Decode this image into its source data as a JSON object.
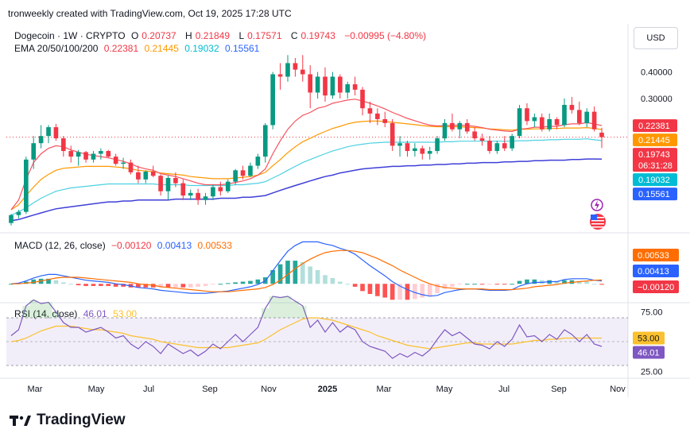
{
  "header": {
    "text": "tronweekly created with TradingView.com, Oct 19, 2025 17:28 UTC"
  },
  "legend": {
    "symbol": "Dogecoin · 1W · CRYPTO",
    "o_label": "O",
    "o": "0.20737",
    "h_label": "H",
    "h": "0.21849",
    "l_label": "L",
    "l": "0.17571",
    "c_label": "C",
    "c": "0.19743",
    "change": "−0.00995 (−4.80%)",
    "ema_label": "EMA 20/50/100/200",
    "ema20": "0.22381",
    "ema50": "0.21445",
    "ema100": "0.19032",
    "ema200": "0.15561"
  },
  "currency_button": "USD",
  "price_axis": {
    "ticks": [
      {
        "v": 0.4,
        "label": "0.40000"
      },
      {
        "v": 0.3,
        "label": "0.30000"
      }
    ],
    "badges": [
      {
        "v": 0.22381,
        "label": "0.22381",
        "color": "#f23645"
      },
      {
        "v": 0.21445,
        "label": "0.21445",
        "color": "#ff9800"
      },
      {
        "v": 0.19743,
        "label": "0.19743",
        "color": "#f23645",
        "sub": "06:31:28"
      },
      {
        "v": 0.19032,
        "label": "0.19032",
        "color": "#00bcd4"
      },
      {
        "v": 0.15561,
        "label": "0.15561",
        "color": "#2962ff"
      }
    ]
  },
  "macd": {
    "label": "MACD (12, 26, close)",
    "v1": "−0.00120",
    "v2": "0.00413",
    "v3": "0.00533",
    "badges": [
      {
        "label": "0.00533",
        "color": "#ff6d00"
      },
      {
        "label": "0.00413",
        "color": "#2962ff"
      },
      {
        "label": "−0.00120",
        "color": "#f23645"
      }
    ]
  },
  "rsi": {
    "label": "RSI (14, close)",
    "v1": "46.01",
    "v2": "53.00",
    "ticks": [
      {
        "v": 75,
        "label": "75.00"
      },
      {
        "v": 25,
        "label": "25.00"
      }
    ],
    "badges": [
      {
        "v": 53,
        "label": "53.00",
        "color": "#fbc02d",
        "text": "#131722"
      },
      {
        "v": 46.01,
        "label": "46.01",
        "color": "#7e57c2",
        "text": "#ffffff"
      }
    ]
  },
  "time_axis": [
    "Mar",
    "May",
    "Jul",
    "Sep",
    "Nov",
    "2025",
    "Mar",
    "May",
    "Jul",
    "Sep",
    "Nov"
  ],
  "brand": "TradingView",
  "colors": {
    "up": "#089981",
    "down": "#f23645",
    "ema20": "#f7525f",
    "ema50": "#ff9800",
    "ema100": "#4dd0e1",
    "ema200": "#3f3fd8",
    "macd": "#2962ff",
    "signal": "#ff6d00",
    "rsi": "#7e57c2",
    "rsi_ma": "#fbc02d"
  },
  "chart_data": {
    "type": "candlestick",
    "title": "Dogecoin · 1W · CRYPTO",
    "x_start": "2024-02",
    "x_end": "2025-10",
    "ohlc": [
      [
        0.078,
        0.086,
        0.076,
        0.085
      ],
      [
        0.085,
        0.09,
        0.082,
        0.088
      ],
      [
        0.088,
        0.16,
        0.086,
        0.155
      ],
      [
        0.155,
        0.2,
        0.14,
        0.185
      ],
      [
        0.185,
        0.225,
        0.175,
        0.2
      ],
      [
        0.2,
        0.225,
        0.185,
        0.22
      ],
      [
        0.22,
        0.228,
        0.19,
        0.195
      ],
      [
        0.195,
        0.2,
        0.16,
        0.17
      ],
      [
        0.17,
        0.18,
        0.15,
        0.16
      ],
      [
        0.16,
        0.172,
        0.145,
        0.168
      ],
      [
        0.168,
        0.17,
        0.15,
        0.155
      ],
      [
        0.155,
        0.17,
        0.15,
        0.165
      ],
      [
        0.165,
        0.175,
        0.155,
        0.17
      ],
      [
        0.17,
        0.172,
        0.158,
        0.16
      ],
      [
        0.16,
        0.165,
        0.145,
        0.148
      ],
      [
        0.148,
        0.158,
        0.14,
        0.15
      ],
      [
        0.15,
        0.155,
        0.132,
        0.135
      ],
      [
        0.135,
        0.145,
        0.12,
        0.125
      ],
      [
        0.125,
        0.138,
        0.12,
        0.136
      ],
      [
        0.136,
        0.145,
        0.128,
        0.13
      ],
      [
        0.13,
        0.132,
        0.105,
        0.11
      ],
      [
        0.11,
        0.13,
        0.1,
        0.127
      ],
      [
        0.127,
        0.135,
        0.115,
        0.12
      ],
      [
        0.12,
        0.125,
        0.1,
        0.105
      ],
      [
        0.105,
        0.112,
        0.1,
        0.108
      ],
      [
        0.108,
        0.113,
        0.095,
        0.1
      ],
      [
        0.1,
        0.108,
        0.095,
        0.104
      ],
      [
        0.104,
        0.118,
        0.1,
        0.115
      ],
      [
        0.115,
        0.122,
        0.105,
        0.11
      ],
      [
        0.11,
        0.125,
        0.108,
        0.122
      ],
      [
        0.122,
        0.14,
        0.118,
        0.138
      ],
      [
        0.138,
        0.145,
        0.125,
        0.13
      ],
      [
        0.13,
        0.15,
        0.128,
        0.145
      ],
      [
        0.145,
        0.165,
        0.14,
        0.16
      ],
      [
        0.16,
        0.23,
        0.15,
        0.225
      ],
      [
        0.225,
        0.4,
        0.215,
        0.39
      ],
      [
        0.39,
        0.44,
        0.33,
        0.38
      ],
      [
        0.38,
        0.48,
        0.36,
        0.44
      ],
      [
        0.44,
        0.465,
        0.38,
        0.41
      ],
      [
        0.41,
        0.48,
        0.36,
        0.39
      ],
      [
        0.39,
        0.43,
        0.27,
        0.32
      ],
      [
        0.32,
        0.4,
        0.3,
        0.38
      ],
      [
        0.38,
        0.42,
        0.29,
        0.31
      ],
      [
        0.31,
        0.4,
        0.3,
        0.38
      ],
      [
        0.38,
        0.39,
        0.3,
        0.32
      ],
      [
        0.32,
        0.36,
        0.3,
        0.35
      ],
      [
        0.35,
        0.38,
        0.31,
        0.33
      ],
      [
        0.33,
        0.34,
        0.25,
        0.27
      ],
      [
        0.27,
        0.29,
        0.23,
        0.255
      ],
      [
        0.255,
        0.27,
        0.225,
        0.24
      ],
      [
        0.24,
        0.26,
        0.22,
        0.23
      ],
      [
        0.23,
        0.24,
        0.17,
        0.18
      ],
      [
        0.18,
        0.2,
        0.16,
        0.185
      ],
      [
        0.185,
        0.19,
        0.16,
        0.17
      ],
      [
        0.17,
        0.185,
        0.16,
        0.175
      ],
      [
        0.175,
        0.18,
        0.155,
        0.165
      ],
      [
        0.165,
        0.178,
        0.155,
        0.17
      ],
      [
        0.17,
        0.2,
        0.165,
        0.195
      ],
      [
        0.195,
        0.24,
        0.19,
        0.23
      ],
      [
        0.23,
        0.255,
        0.21,
        0.215
      ],
      [
        0.215,
        0.235,
        0.195,
        0.23
      ],
      [
        0.23,
        0.24,
        0.205,
        0.21
      ],
      [
        0.21,
        0.22,
        0.19,
        0.195
      ],
      [
        0.195,
        0.205,
        0.18,
        0.19
      ],
      [
        0.19,
        0.2,
        0.165,
        0.17
      ],
      [
        0.17,
        0.19,
        0.165,
        0.185
      ],
      [
        0.185,
        0.2,
        0.17,
        0.175
      ],
      [
        0.175,
        0.205,
        0.17,
        0.2
      ],
      [
        0.2,
        0.28,
        0.195,
        0.27
      ],
      [
        0.27,
        0.285,
        0.225,
        0.235
      ],
      [
        0.235,
        0.255,
        0.22,
        0.245
      ],
      [
        0.245,
        0.255,
        0.21,
        0.215
      ],
      [
        0.215,
        0.255,
        0.21,
        0.24
      ],
      [
        0.24,
        0.245,
        0.215,
        0.225
      ],
      [
        0.225,
        0.3,
        0.22,
        0.28
      ],
      [
        0.28,
        0.305,
        0.255,
        0.265
      ],
      [
        0.265,
        0.29,
        0.225,
        0.23
      ],
      [
        0.23,
        0.27,
        0.22,
        0.26
      ],
      [
        0.26,
        0.275,
        0.21,
        0.215
      ],
      [
        0.20737,
        0.21849,
        0.17571,
        0.19743
      ]
    ],
    "ema20": [
      0.09,
      0.1,
      0.125,
      0.15,
      0.165,
      0.175,
      0.18,
      0.178,
      0.172,
      0.168,
      0.164,
      0.162,
      0.16,
      0.158,
      0.155,
      0.152,
      0.148,
      0.143,
      0.14,
      0.138,
      0.133,
      0.131,
      0.129,
      0.126,
      0.123,
      0.12,
      0.118,
      0.118,
      0.118,
      0.119,
      0.121,
      0.123,
      0.126,
      0.131,
      0.14,
      0.165,
      0.19,
      0.215,
      0.235,
      0.25,
      0.258,
      0.27,
      0.275,
      0.285,
      0.29,
      0.295,
      0.298,
      0.292,
      0.285,
      0.277,
      0.268,
      0.258,
      0.25,
      0.242,
      0.236,
      0.23,
      0.225,
      0.223,
      0.224,
      0.224,
      0.225,
      0.224,
      0.222,
      0.219,
      0.215,
      0.213,
      0.211,
      0.21,
      0.215,
      0.217,
      0.22,
      0.22,
      0.222,
      0.222,
      0.226,
      0.228,
      0.228,
      0.231,
      0.228,
      0.22381
    ],
    "ema50": [
      0.09,
      0.095,
      0.105,
      0.115,
      0.125,
      0.132,
      0.138,
      0.141,
      0.142,
      0.143,
      0.144,
      0.144,
      0.144,
      0.144,
      0.143,
      0.142,
      0.14,
      0.138,
      0.137,
      0.136,
      0.134,
      0.133,
      0.132,
      0.131,
      0.129,
      0.128,
      0.127,
      0.126,
      0.126,
      0.126,
      0.127,
      0.128,
      0.129,
      0.131,
      0.135,
      0.145,
      0.155,
      0.167,
      0.178,
      0.188,
      0.195,
      0.203,
      0.21,
      0.217,
      0.222,
      0.228,
      0.232,
      0.234,
      0.235,
      0.235,
      0.234,
      0.232,
      0.23,
      0.228,
      0.226,
      0.224,
      0.222,
      0.221,
      0.221,
      0.221,
      0.221,
      0.22,
      0.219,
      0.218,
      0.216,
      0.215,
      0.214,
      0.213,
      0.215,
      0.215,
      0.216,
      0.216,
      0.217,
      0.217,
      0.218,
      0.218,
      0.218,
      0.219,
      0.217,
      0.21445
    ],
    "ema100": [
      0.085,
      0.088,
      0.092,
      0.097,
      0.102,
      0.106,
      0.11,
      0.112,
      0.114,
      0.115,
      0.116,
      0.117,
      0.118,
      0.119,
      0.119,
      0.119,
      0.119,
      0.119,
      0.119,
      0.119,
      0.118,
      0.118,
      0.118,
      0.118,
      0.117,
      0.117,
      0.117,
      0.117,
      0.117,
      0.117,
      0.118,
      0.118,
      0.119,
      0.12,
      0.122,
      0.127,
      0.132,
      0.138,
      0.144,
      0.15,
      0.155,
      0.16,
      0.165,
      0.17,
      0.174,
      0.178,
      0.181,
      0.183,
      0.185,
      0.186,
      0.187,
      0.187,
      0.187,
      0.187,
      0.187,
      0.187,
      0.187,
      0.187,
      0.188,
      0.188,
      0.189,
      0.189,
      0.189,
      0.189,
      0.189,
      0.189,
      0.189,
      0.189,
      0.19,
      0.19,
      0.191,
      0.191,
      0.192,
      0.192,
      0.193,
      0.193,
      0.193,
      0.194,
      0.192,
      0.19032
    ],
    "ema200": [
      0.08,
      0.081,
      0.083,
      0.085,
      0.087,
      0.089,
      0.091,
      0.092,
      0.093,
      0.094,
      0.095,
      0.096,
      0.097,
      0.098,
      0.098,
      0.099,
      0.099,
      0.1,
      0.1,
      0.1,
      0.1,
      0.1,
      0.101,
      0.101,
      0.101,
      0.101,
      0.101,
      0.101,
      0.102,
      0.102,
      0.102,
      0.103,
      0.103,
      0.104,
      0.105,
      0.108,
      0.111,
      0.114,
      0.117,
      0.12,
      0.123,
      0.126,
      0.129,
      0.131,
      0.134,
      0.136,
      0.138,
      0.14,
      0.141,
      0.142,
      0.143,
      0.144,
      0.144,
      0.145,
      0.145,
      0.146,
      0.146,
      0.147,
      0.147,
      0.148,
      0.148,
      0.149,
      0.149,
      0.15,
      0.15,
      0.15,
      0.151,
      0.151,
      0.152,
      0.152,
      0.153,
      0.153,
      0.154,
      0.154,
      0.154,
      0.155,
      0.155,
      0.156,
      0.156,
      0.15561
    ],
    "macd": [
      0.0,
      0.001,
      0.004,
      0.008,
      0.011,
      0.013,
      0.013,
      0.011,
      0.009,
      0.007,
      0.005,
      0.004,
      0.003,
      0.002,
      0.0,
      -0.001,
      -0.003,
      -0.005,
      -0.006,
      -0.007,
      -0.009,
      -0.01,
      -0.011,
      -0.012,
      -0.013,
      -0.013,
      -0.013,
      -0.012,
      -0.011,
      -0.01,
      -0.008,
      -0.006,
      -0.004,
      -0.001,
      0.004,
      0.018,
      0.032,
      0.045,
      0.053,
      0.058,
      0.058,
      0.058,
      0.055,
      0.053,
      0.049,
      0.046,
      0.041,
      0.033,
      0.025,
      0.018,
      0.011,
      0.003,
      -0.003,
      -0.008,
      -0.012,
      -0.015,
      -0.017,
      -0.016,
      -0.012,
      -0.01,
      -0.008,
      -0.007,
      -0.007,
      -0.008,
      -0.009,
      -0.009,
      -0.009,
      -0.008,
      -0.003,
      0.0,
      0.002,
      0.002,
      0.003,
      0.003,
      0.006,
      0.007,
      0.007,
      0.007,
      0.005,
      0.00413
    ],
    "signal": [
      0.0,
      0.0,
      0.001,
      0.002,
      0.004,
      0.006,
      0.008,
      0.009,
      0.009,
      0.009,
      0.008,
      0.007,
      0.006,
      0.005,
      0.004,
      0.003,
      0.002,
      0.0,
      -0.001,
      -0.002,
      -0.004,
      -0.005,
      -0.006,
      -0.007,
      -0.008,
      -0.009,
      -0.01,
      -0.011,
      -0.011,
      -0.011,
      -0.01,
      -0.009,
      -0.008,
      -0.007,
      -0.005,
      -0.001,
      0.005,
      0.013,
      0.021,
      0.028,
      0.034,
      0.039,
      0.043,
      0.045,
      0.046,
      0.046,
      0.045,
      0.043,
      0.039,
      0.035,
      0.03,
      0.025,
      0.019,
      0.014,
      0.009,
      0.004,
      0.0,
      -0.003,
      -0.005,
      -0.006,
      -0.007,
      -0.007,
      -0.007,
      -0.007,
      -0.008,
      -0.008,
      -0.008,
      -0.008,
      -0.007,
      -0.006,
      -0.004,
      -0.003,
      -0.002,
      -0.001,
      0.001,
      0.002,
      0.003,
      0.004,
      0.005,
      0.00533
    ],
    "rsi": [
      55,
      60,
      80,
      85,
      82,
      83,
      75,
      66,
      62,
      62,
      58,
      60,
      62,
      58,
      53,
      55,
      48,
      44,
      50,
      46,
      40,
      48,
      44,
      40,
      43,
      38,
      42,
      48,
      44,
      50,
      56,
      50,
      56,
      62,
      78,
      88,
      87,
      88,
      84,
      80,
      62,
      68,
      58,
      66,
      58,
      63,
      60,
      50,
      46,
      44,
      42,
      36,
      40,
      37,
      41,
      38,
      43,
      52,
      60,
      55,
      58,
      53,
      48,
      47,
      44,
      50,
      46,
      52,
      64,
      54,
      55,
      50,
      56,
      52,
      60,
      56,
      50,
      56,
      48,
      46.01
    ],
    "rsi_ma": [
      50,
      51,
      53,
      56,
      59,
      61,
      63,
      63,
      63,
      62,
      61,
      60,
      60,
      59,
      58,
      57,
      55,
      54,
      53,
      52,
      50,
      49,
      48,
      47,
      46,
      45,
      45,
      45,
      45,
      45,
      46,
      47,
      48,
      49,
      52,
      56,
      60,
      63,
      66,
      69,
      70,
      70,
      69,
      68,
      66,
      64,
      62,
      60,
      58,
      55,
      53,
      51,
      49,
      47,
      46,
      45,
      44,
      45,
      46,
      47,
      48,
      49,
      49,
      48,
      48,
      48,
      48,
      48,
      49,
      50,
      51,
      51,
      52,
      52,
      53,
      53,
      53,
      53,
      53,
      53
    ],
    "rsi_levels": [
      70,
      50,
      30
    ],
    "rsi_ylim": [
      20,
      80
    ],
    "price_scale": "log"
  }
}
